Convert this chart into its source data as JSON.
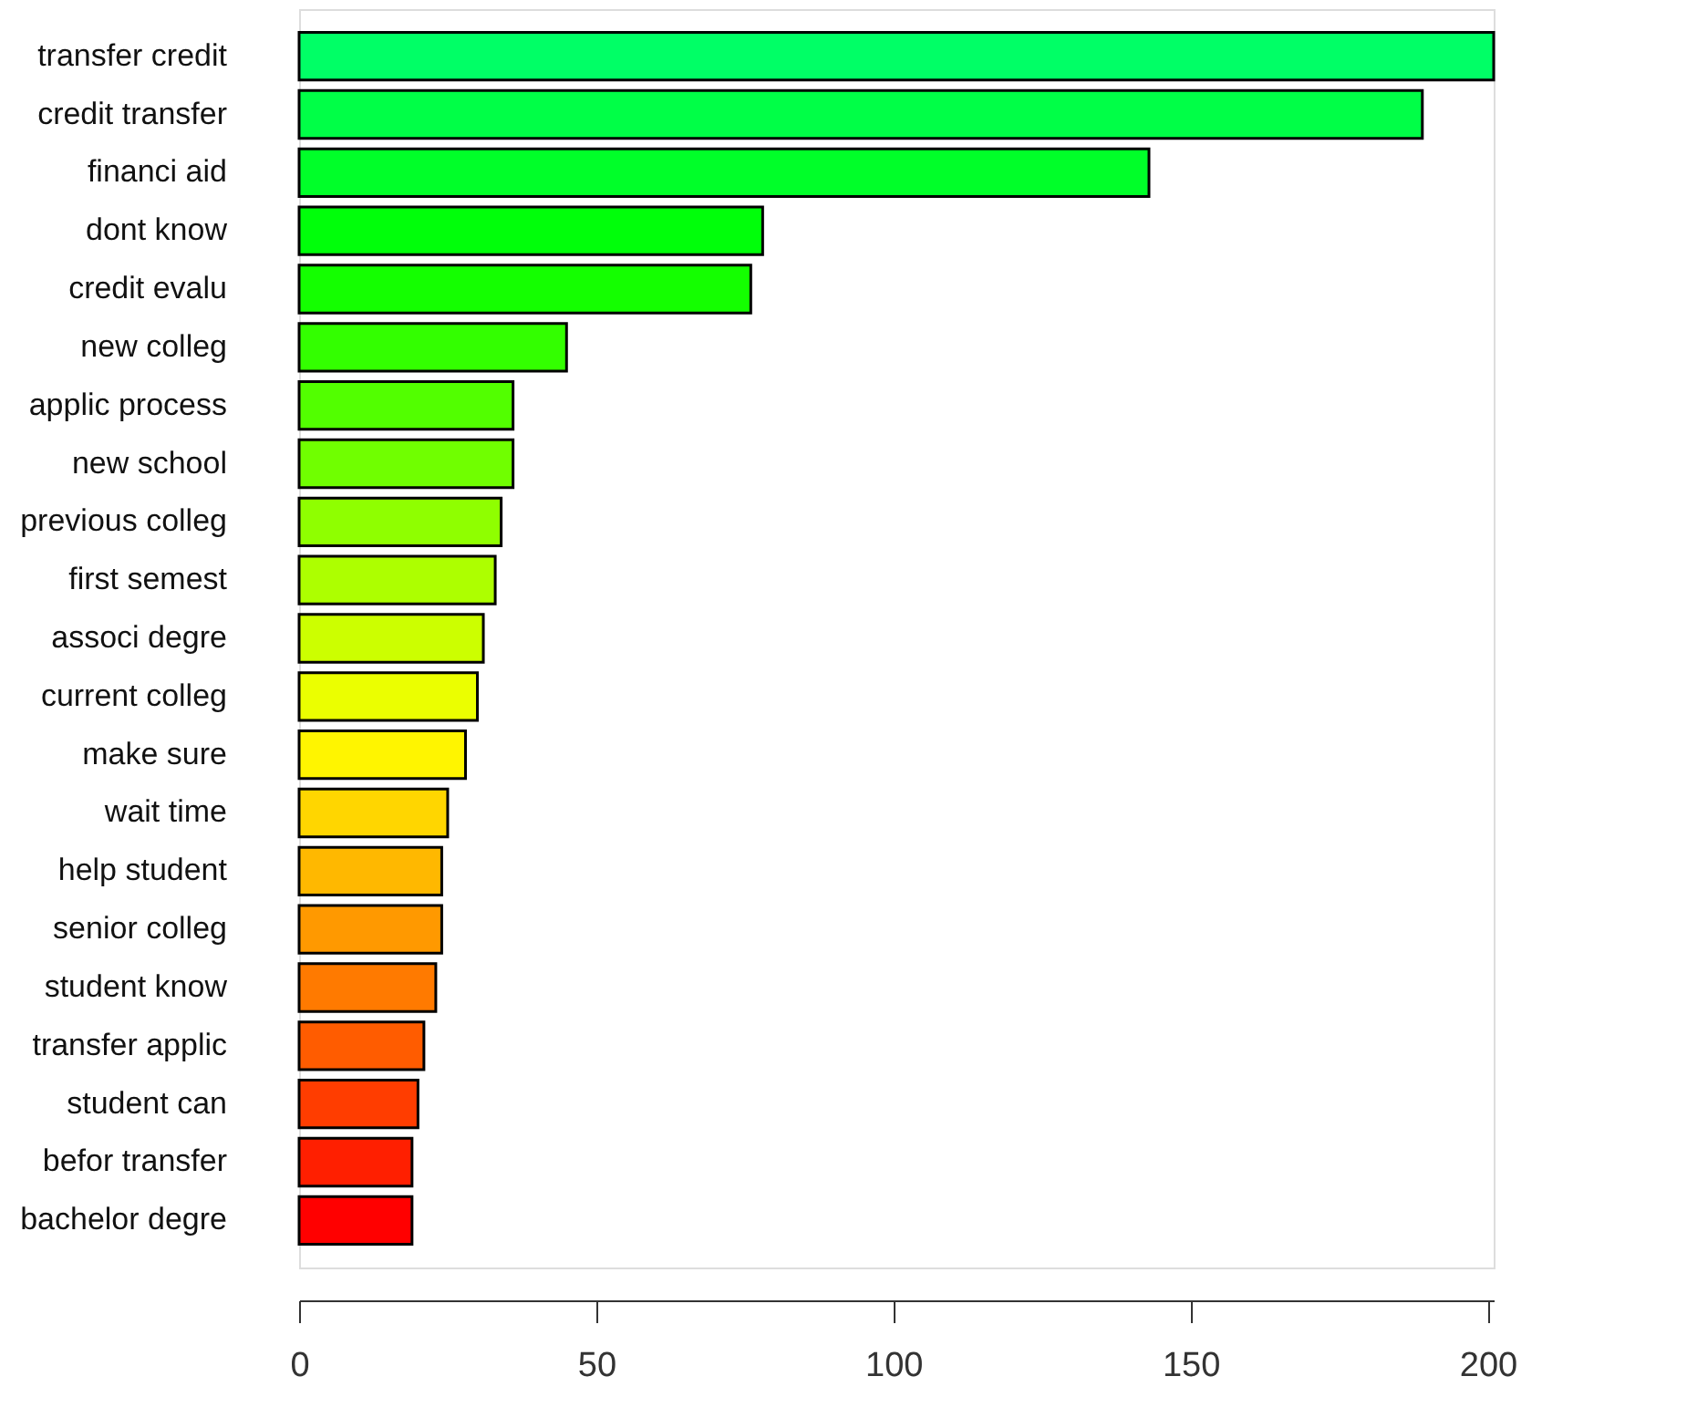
{
  "chart_data": {
    "type": "bar",
    "orientation": "horizontal",
    "categories": [
      "transfer credit",
      "credit transfer",
      "financi aid",
      "dont know",
      "credit evalu",
      "new colleg",
      "applic process",
      "new school",
      "previous colleg",
      "first semest",
      "associ degre",
      "current colleg",
      "make sure",
      "wait time",
      "help student",
      "senior colleg",
      "student know",
      "transfer applic",
      "student can",
      "befor transfer",
      "bachelor degre"
    ],
    "values": [
      201,
      189,
      143,
      78,
      76,
      45,
      36,
      36,
      34,
      33,
      31,
      30,
      28,
      25,
      24,
      24,
      23,
      21,
      20,
      19,
      19
    ],
    "colors": [
      "#00FF66",
      "#00FF47",
      "#00FF29",
      "#00FF0A",
      "#14FF00",
      "#33FF00",
      "#52FF00",
      "#70FF00",
      "#8FFF00",
      "#ADFF00",
      "#CCFF00",
      "#EBFF00",
      "#FFF500",
      "#FFD600",
      "#FFB800",
      "#FF9900",
      "#FF7A00",
      "#FF5C00",
      "#FF3D00",
      "#FF1F00",
      "#FF0000"
    ],
    "xlim": [
      0,
      201
    ],
    "xticks": [
      0,
      50,
      100,
      150,
      200
    ],
    "grid": false
  }
}
